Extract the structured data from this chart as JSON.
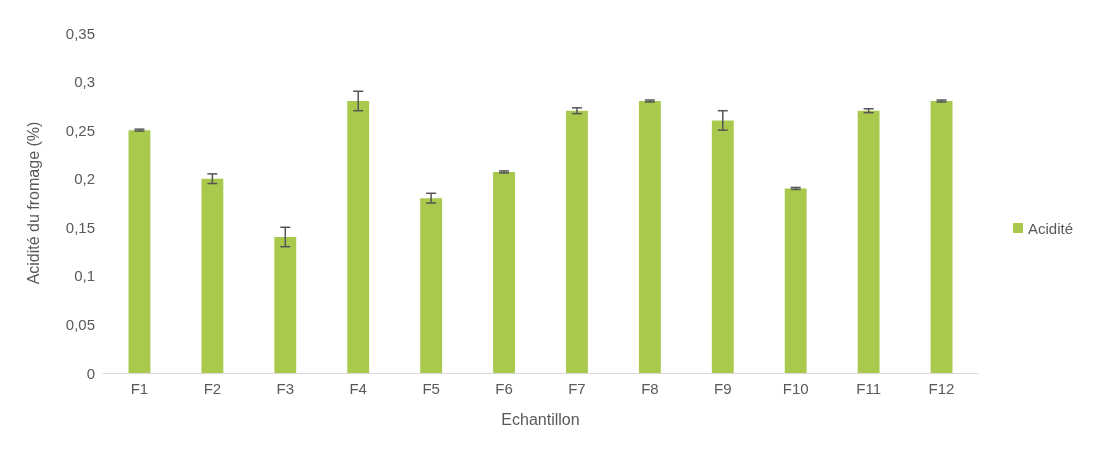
{
  "chart_data": {
    "type": "bar",
    "xlabel": "Echantillon",
    "ylabel": "Acidité du fromage (%)",
    "categories": [
      "F1",
      "F2",
      "F3",
      "F4",
      "F5",
      "F6",
      "F7",
      "F8",
      "F9",
      "F10",
      "F11",
      "F12"
    ],
    "series": [
      {
        "name": "Acidité",
        "color": "#a9c94c",
        "values": [
          0.25,
          0.2,
          0.14,
          0.28,
          0.18,
          0.207,
          0.27,
          0.28,
          0.26,
          0.19,
          0.27,
          0.28
        ],
        "errors": [
          0.001,
          0.005,
          0.01,
          0.01,
          0.005,
          0.001,
          0.003,
          0.001,
          0.01,
          0.001,
          0.002,
          0.001
        ]
      }
    ],
    "ylim": [
      0,
      0.35
    ],
    "yticks": [
      {
        "value": 0,
        "label": "0"
      },
      {
        "value": 0.05,
        "label": "0,05"
      },
      {
        "value": 0.1,
        "label": "0,1"
      },
      {
        "value": 0.15,
        "label": "0,15"
      },
      {
        "value": 0.2,
        "label": "0,2"
      },
      {
        "value": 0.25,
        "label": "0,25"
      },
      {
        "value": 0.3,
        "label": "0,3"
      },
      {
        "value": 0.35,
        "label": "0,35"
      }
    ],
    "grid": false,
    "legend": "right"
  }
}
